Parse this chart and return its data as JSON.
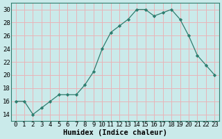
{
  "x": [
    0,
    1,
    2,
    3,
    4,
    5,
    6,
    7,
    8,
    9,
    10,
    11,
    12,
    13,
    14,
    15,
    16,
    17,
    18,
    19,
    20,
    21,
    22,
    23
  ],
  "y": [
    16,
    16,
    14,
    15,
    16,
    17,
    17,
    17,
    18.5,
    20.5,
    24,
    26.5,
    27.5,
    28.5,
    30,
    30,
    29,
    29.5,
    30,
    28.5,
    26,
    23,
    21.5,
    20
  ],
  "line_color": "#2e7d6e",
  "marker": "D",
  "marker_size": 2.2,
  "bg_color": "#caeaea",
  "grid_color": "#e8b4b8",
  "xlabel": "Humidex (Indice chaleur)",
  "ylim": [
    13,
    31
  ],
  "xlim": [
    -0.5,
    23.5
  ],
  "yticks": [
    14,
    16,
    18,
    20,
    22,
    24,
    26,
    28,
    30
  ],
  "xticks": [
    0,
    1,
    2,
    3,
    4,
    5,
    6,
    7,
    8,
    9,
    10,
    11,
    12,
    13,
    14,
    15,
    16,
    17,
    18,
    19,
    20,
    21,
    22,
    23
  ],
  "xlabel_fontsize": 7.5,
  "tick_fontsize": 6.5
}
